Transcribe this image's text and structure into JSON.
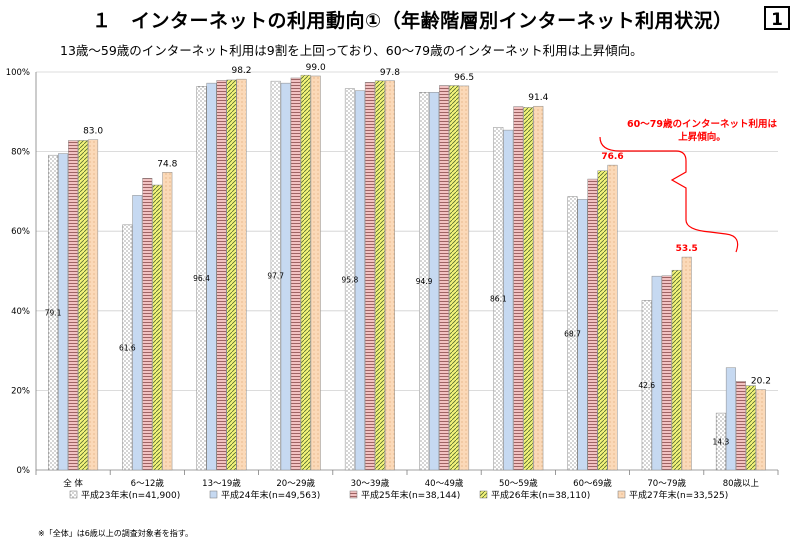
{
  "header": {
    "title": "１　インターネットの利用動向①（年齢階層別インターネット利用状況）",
    "page_number": "1",
    "subtitle": "13歳～59歳のインターネット利用は9割を上回っており、60～79歳のインターネット利用は上昇傾向。"
  },
  "footnote": "※「全体」は6歳以上の調査対象者を指す。",
  "annotation": {
    "text_line1": "60～79歳のインターネット利用は",
    "text_line2": "上昇傾向。",
    "color": "#ff0000"
  },
  "chart_data": {
    "type": "bar",
    "categories": [
      "全 体",
      "6～12歳",
      "13～19歳",
      "20～29歳",
      "30～39歳",
      "40～49歳",
      "50～59歳",
      "60～69歳",
      "70～79歳",
      "80歳以上"
    ],
    "series": [
      {
        "name": "平成23年末(n=41,900)",
        "values": [
          79.1,
          61.6,
          96.4,
          97.7,
          95.8,
          94.9,
          86.1,
          68.7,
          42.6,
          14.3
        ]
      },
      {
        "name": "平成24年末(n=49,563)",
        "values": [
          79.5,
          69.0,
          97.2,
          97.2,
          95.3,
          94.9,
          85.4,
          68.0,
          48.7,
          25.7
        ]
      },
      {
        "name": "平成25年末(n=38,144)",
        "values": [
          82.8,
          73.3,
          97.9,
          98.5,
          97.4,
          96.6,
          91.3,
          73.1,
          48.8,
          22.3
        ]
      },
      {
        "name": "平成26年末(n=38,110)",
        "values": [
          82.8,
          71.6,
          98.0,
          99.2,
          97.8,
          96.6,
          91.1,
          75.2,
          50.2,
          21.2
        ]
      },
      {
        "name": "平成27年末(n=33,525)",
        "values": [
          83.0,
          74.8,
          98.2,
          99.0,
          97.8,
          96.5,
          91.4,
          76.6,
          53.5,
          20.2
        ]
      }
    ],
    "data_labels": {
      "first_series": [
        "79.1",
        "61.6",
        "96.4",
        "97.7",
        "95.8",
        "94.9",
        "86.1",
        "68.7",
        "42.6",
        "14.3"
      ],
      "last_series": [
        "83.0",
        "74.8",
        "98.2",
        "99.0",
        "97.8",
        "96.5",
        "91.4",
        "76.6",
        "53.5",
        "20.2"
      ],
      "highlight_categories": [
        "60～69歳",
        "70～79歳"
      ],
      "highlight_color": "#ff0000"
    },
    "yticks": [
      "0%",
      "20%",
      "40%",
      "60%",
      "80%",
      "100%"
    ],
    "ylim": [
      0,
      100
    ],
    "legend_position": "bottom",
    "grid": true
  }
}
